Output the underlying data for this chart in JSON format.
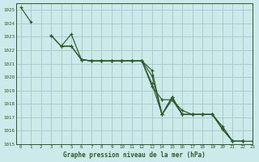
{
  "title": "Graphe pression niveau de la mer (hPa)",
  "background_color": "#cceaea",
  "grid_color": "#aacccc",
  "line_color": "#2d5a27",
  "text_color": "#2d5a27",
  "xlim": [
    -0.5,
    23
  ],
  "ylim": [
    1015,
    1025.5
  ],
  "yticks": [
    1015,
    1016,
    1017,
    1018,
    1019,
    1020,
    1021,
    1022,
    1023,
    1024,
    1025
  ],
  "xticks": [
    0,
    1,
    2,
    3,
    4,
    5,
    6,
    7,
    8,
    9,
    10,
    11,
    12,
    13,
    14,
    15,
    16,
    17,
    18,
    19,
    20,
    21,
    22,
    23
  ],
  "series": [
    {
      "x": [
        0,
        1
      ],
      "y": [
        1025.2,
        1024.1
      ]
    },
    {
      "x": [
        3,
        4,
        5,
        6,
        7,
        8,
        9,
        10,
        11,
        12,
        13,
        14,
        15,
        16,
        17,
        18,
        19,
        20,
        21,
        22
      ],
      "y": [
        1023.1,
        1022.3,
        1022.3,
        1021.3,
        1021.2,
        1021.2,
        1021.2,
        1021.2,
        1021.2,
        1021.2,
        1020.5,
        1017.2,
        1018.3,
        1017.5,
        1017.2,
        1017.2,
        1017.2,
        1016.3,
        1015.2,
        1015.2
      ]
    },
    {
      "x": [
        3,
        4,
        5,
        6,
        7,
        8,
        9,
        10,
        11,
        12,
        13,
        14,
        15,
        16,
        17,
        18,
        19,
        20,
        21,
        22
      ],
      "y": [
        1023.1,
        1022.3,
        1023.2,
        1021.3,
        1021.2,
        1021.2,
        1021.2,
        1021.2,
        1021.2,
        1021.2,
        1019.3,
        1018.3,
        1018.3,
        1017.2,
        1017.2,
        1017.2,
        1017.2,
        1016.1,
        1015.2,
        1015.2
      ]
    },
    {
      "x": [
        4,
        5,
        6,
        7,
        8,
        9,
        10,
        11,
        12,
        13,
        14,
        15,
        16,
        17,
        18,
        19,
        20,
        21,
        22
      ],
      "y": [
        1022.3,
        1022.3,
        1021.3,
        1021.2,
        1021.2,
        1021.2,
        1021.2,
        1021.2,
        1021.2,
        1019.5,
        1017.2,
        1018.5,
        1017.2,
        1017.2,
        1017.2,
        1017.2,
        1016.1,
        1015.2,
        1015.2
      ]
    },
    {
      "x": [
        6,
        7,
        8,
        9,
        10,
        11,
        12,
        13,
        14,
        15,
        16,
        17,
        18,
        19,
        20,
        21,
        22,
        23
      ],
      "y": [
        1021.3,
        1021.2,
        1021.2,
        1021.2,
        1021.2,
        1021.2,
        1021.2,
        1020.1,
        1017.2,
        1018.5,
        1017.2,
        1017.2,
        1017.2,
        1017.2,
        1016.1,
        1015.2,
        1015.2,
        1015.2
      ]
    }
  ],
  "figsize": [
    3.2,
    2.0
  ],
  "dpi": 100
}
